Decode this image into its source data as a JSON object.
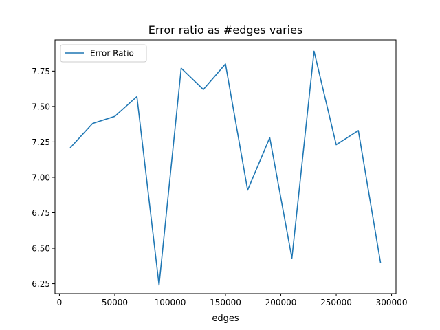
{
  "chart_data": {
    "type": "line",
    "title": "Error ratio as #edges varies",
    "xlabel": "edges",
    "ylabel": "",
    "xlim": [
      -4000,
      304000
    ],
    "ylim": [
      6.18,
      7.97
    ],
    "xticks": [
      0,
      50000,
      100000,
      150000,
      200000,
      250000,
      300000
    ],
    "xtick_labels": [
      "0",
      "50000",
      "100000",
      "150000",
      "200000",
      "250000",
      "300000"
    ],
    "yticks": [
      6.25,
      6.5,
      6.75,
      7.0,
      7.25,
      7.5,
      7.75
    ],
    "ytick_labels": [
      "6.25",
      "6.50",
      "6.75",
      "7.00",
      "7.25",
      "7.50",
      "7.75"
    ],
    "grid": false,
    "legend_position": "top-left",
    "series": [
      {
        "name": "Error Ratio",
        "color": "#1f77b4",
        "x": [
          10000,
          30000,
          50000,
          70000,
          90000,
          110000,
          130000,
          150000,
          170000,
          190000,
          210000,
          230000,
          250000,
          270000,
          290000
        ],
        "y": [
          7.21,
          7.38,
          7.43,
          7.57,
          6.24,
          7.77,
          7.62,
          7.8,
          6.91,
          7.28,
          6.43,
          7.89,
          7.23,
          7.33,
          6.4
        ]
      }
    ]
  }
}
